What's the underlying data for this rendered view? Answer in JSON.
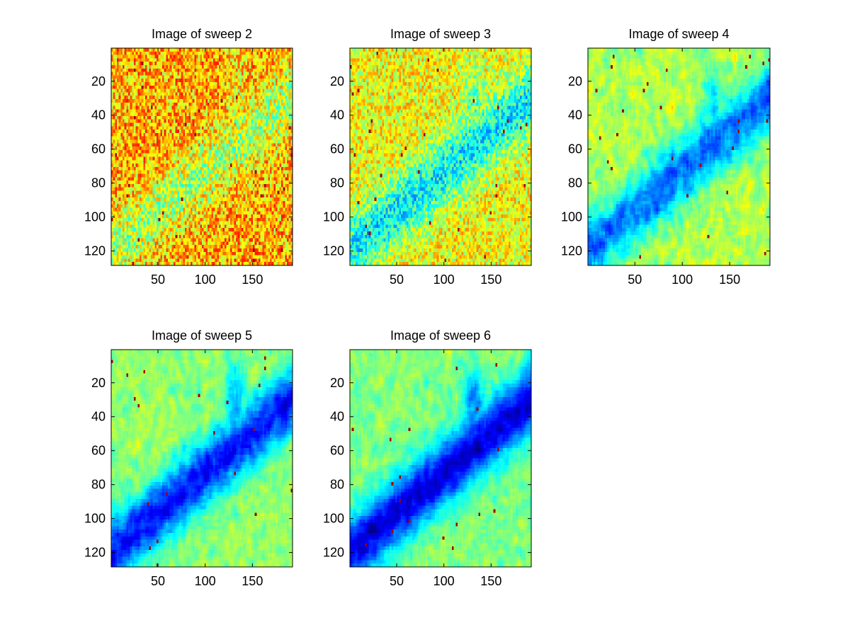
{
  "chart_data": [
    {
      "type": "heatmap",
      "title": "Image of sweep  2",
      "colormap": "jet",
      "xlim": [
        0.5,
        192.5
      ],
      "ylim": [
        0.5,
        128.5
      ],
      "y_reversed": true,
      "xticks": [
        50,
        100,
        150
      ],
      "yticks": [
        20,
        40,
        60,
        80,
        100,
        120
      ],
      "xlabel": "",
      "ylabel": "",
      "mean_level": 0.7,
      "band_depth": 0.1,
      "noise": 0.32
    },
    {
      "type": "heatmap",
      "title": "Image of sweep  3",
      "colormap": "jet",
      "xlim": [
        0.5,
        192.5
      ],
      "ylim": [
        0.5,
        128.5
      ],
      "y_reversed": true,
      "xticks": [
        50,
        100,
        150
      ],
      "yticks": [
        20,
        40,
        60,
        80,
        100,
        120
      ],
      "xlabel": "",
      "ylabel": "",
      "mean_level": 0.62,
      "band_depth": 0.16,
      "noise": 0.26
    },
    {
      "type": "heatmap",
      "title": "Image of sweep  4",
      "colormap": "jet",
      "xlim": [
        0.5,
        192.5
      ],
      "ylim": [
        0.5,
        128.5
      ],
      "y_reversed": true,
      "xticks": [
        50,
        100,
        150
      ],
      "yticks": [
        20,
        40,
        60,
        80,
        100,
        120
      ],
      "xlabel": "",
      "ylabel": "",
      "mean_level": 0.55,
      "band_depth": 0.2,
      "noise": 0.2
    },
    {
      "type": "heatmap",
      "title": "Image of sweep  5",
      "colormap": "jet",
      "xlim": [
        0.5,
        192.5
      ],
      "ylim": [
        0.5,
        128.5
      ],
      "y_reversed": true,
      "xticks": [
        50,
        100,
        150
      ],
      "yticks": [
        20,
        40,
        60,
        80,
        100,
        120
      ],
      "xlabel": "",
      "ylabel": "",
      "mean_level": 0.52,
      "band_depth": 0.24,
      "noise": 0.17
    },
    {
      "type": "heatmap",
      "title": "Image of sweep  6",
      "colormap": "jet",
      "xlim": [
        0.5,
        192.5
      ],
      "ylim": [
        0.5,
        128.5
      ],
      "y_reversed": true,
      "xticks": [
        50,
        100,
        150
      ],
      "yticks": [
        20,
        40,
        60,
        80,
        100,
        120
      ],
      "xlabel": "",
      "ylabel": "",
      "mean_level": 0.5,
      "band_depth": 0.26,
      "noise": 0.16
    }
  ]
}
